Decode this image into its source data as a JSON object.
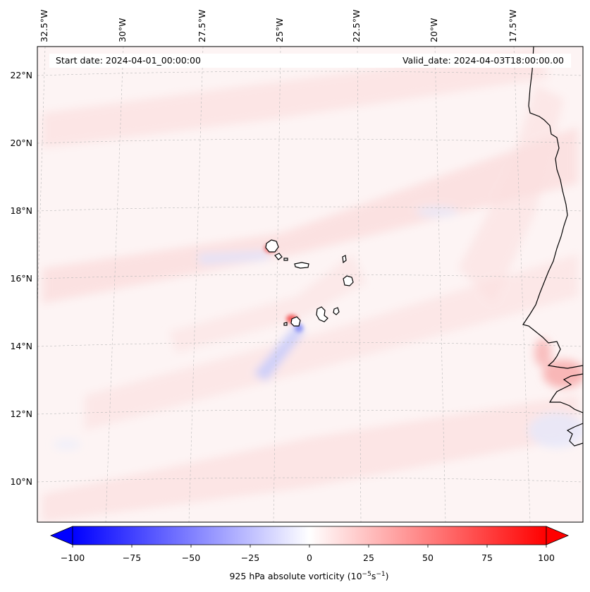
{
  "map": {
    "start_date": "Start date: 2024-04-01_00:00:00",
    "valid_date": "Valid_date: 2024-04-03T18:00:00.00",
    "lon_labels": [
      "32.5°W",
      "30°W",
      "27.5°W",
      "25°W",
      "22.5°W",
      "20°W",
      "17.5°W"
    ],
    "lat_labels": [
      "22°N",
      "20°N",
      "18°N",
      "16°N",
      "14°N",
      "12°N",
      "10°N"
    ],
    "projection": "conic",
    "gridlines": true,
    "field_colors": {
      "positive": "#ff0000",
      "negative": "#0000ff",
      "zero": "#ffffff"
    }
  },
  "colorbar": {
    "label_prefix": "925 hPa absolute vorticity (10",
    "label_exp1": "−5",
    "label_mid": "s",
    "label_exp2": "−1",
    "label_suffix": ")",
    "ticks": [
      "−100",
      "−75",
      "−50",
      "−25",
      "0",
      "25",
      "50",
      "75",
      "100"
    ],
    "min": -100,
    "max": 100,
    "extend": "both",
    "colormap": "bwr"
  }
}
